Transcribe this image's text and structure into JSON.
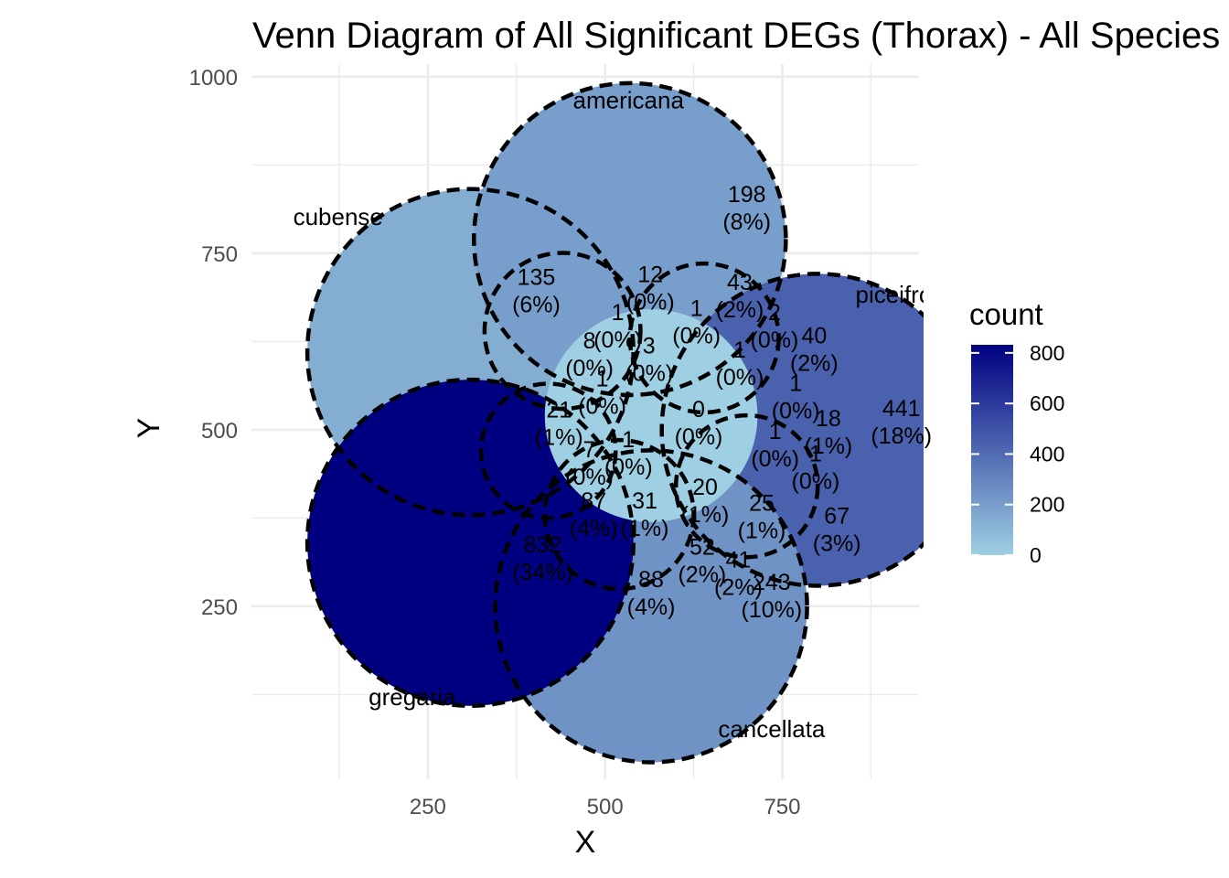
{
  "chart_data": {
    "type": "venn",
    "title": "Venn Diagram of All Significant DEGs (Thorax) - All Species",
    "xlabel": "X",
    "ylabel": "Y",
    "xlim": [
      100,
      1000
    ],
    "ylim": [
      0,
      1000
    ],
    "x_ticks": [
      250,
      500,
      750
    ],
    "y_ticks": [
      250,
      500,
      750,
      1000
    ],
    "grid": true,
    "sets": [
      {
        "name": "cubense",
        "label_x": 60,
        "label_y": 790
      },
      {
        "name": "americana",
        "label_x": 533,
        "label_y": 955
      },
      {
        "name": "piceifrons",
        "label_x": 925,
        "label_y": 680
      },
      {
        "name": "cancellata",
        "label_x": 735,
        "label_y": 65
      },
      {
        "name": "gregaria",
        "label_x": 228,
        "label_y": 110
      }
    ],
    "set_circles": [
      {
        "set": "cubense",
        "cx": 310,
        "cy": 610,
        "r": 230,
        "count": 135
      },
      {
        "set": "americana",
        "cx": 535,
        "cy": 770,
        "r": 220,
        "count": 198
      },
      {
        "set": "piceifrons",
        "cx": 800,
        "cy": 500,
        "r": 220,
        "count": 441
      },
      {
        "set": "cancellata",
        "cx": 565,
        "cy": 250,
        "r": 220,
        "count": 243
      },
      {
        "set": "gregaria",
        "cx": 310,
        "cy": 340,
        "r": 230,
        "count": 832
      }
    ],
    "regions": [
      {
        "sets": [
          "cubense"
        ],
        "count": 135,
        "pct": "(6%)",
        "x": 403,
        "y": 700
      },
      {
        "sets": [
          "americana"
        ],
        "count": 198,
        "pct": "(8%)",
        "x": 700,
        "y": 817
      },
      {
        "sets": [
          "piceifrons"
        ],
        "count": 441,
        "pct": "(18%)",
        "x": 918,
        "y": 514
      },
      {
        "sets": [
          "cancellata"
        ],
        "count": 243,
        "pct": "(10%)",
        "x": 735,
        "y": 268
      },
      {
        "sets": [
          "gregaria"
        ],
        "count": 832,
        "pct": "(34%)",
        "x": 412,
        "y": 321
      },
      {
        "sets": [
          "cubense",
          "americana"
        ],
        "count": 12,
        "pct": "(0%)",
        "x": 564,
        "y": 704
      },
      {
        "sets": [
          "americana",
          "piceifrons"
        ],
        "count": 43,
        "pct": "(2%)",
        "x": 690,
        "y": 693
      },
      {
        "sets": [
          "piceifrons",
          "americana",
          "x"
        ],
        "count": 40,
        "pct": "(2%)",
        "x": 795,
        "y": 617
      },
      {
        "sets": [
          "piceifrons",
          "cancellata"
        ],
        "count": 67,
        "pct": "(3%)",
        "x": 827,
        "y": 362
      },
      {
        "sets": [
          "cancellata",
          "gregaria"
        ],
        "count": 88,
        "pct": "(4%)",
        "x": 565,
        "y": 272
      },
      {
        "sets": [
          "cubense",
          "gregaria"
        ],
        "count": 21,
        "pct": "(1%)",
        "x": 435,
        "y": 512
      },
      {
        "sets": [
          "region-8"
        ],
        "count": 8,
        "pct": "(0%)",
        "x": 478,
        "y": 610
      },
      {
        "sets": [
          "region-1a"
        ],
        "count": 1,
        "pct": "(0%)",
        "x": 518,
        "y": 650
      },
      {
        "sets": [
          "region-1b"
        ],
        "count": 1,
        "pct": "(0%)",
        "x": 629,
        "y": 656
      },
      {
        "sets": [
          "region-2"
        ],
        "count": 2,
        "pct": "(0%)",
        "x": 739,
        "y": 650
      },
      {
        "sets": [
          "region-3"
        ],
        "count": 3,
        "pct": "(0%)",
        "x": 562,
        "y": 603
      },
      {
        "sets": [
          "region-1c"
        ],
        "count": 1,
        "pct": "(0%)",
        "x": 690,
        "y": 597
      },
      {
        "sets": [
          "region-1d"
        ],
        "count": 1,
        "pct": "(0%)",
        "x": 496,
        "y": 556
      },
      {
        "sets": [
          "region-1e"
        ],
        "count": 1,
        "pct": "(0%)",
        "x": 769,
        "y": 550
      },
      {
        "sets": [
          "region-0"
        ],
        "count": 0,
        "pct": "(0%)",
        "x": 632,
        "y": 513
      },
      {
        "sets": [
          "region-18"
        ],
        "count": 18,
        "pct": "(1%)",
        "x": 815,
        "y": 500
      },
      {
        "sets": [
          "region-1f"
        ],
        "count": 1,
        "pct": "(0%)",
        "x": 533,
        "y": 470
      },
      {
        "sets": [
          "region-1g"
        ],
        "count": 1,
        "pct": "(0%)",
        "x": 740,
        "y": 482
      },
      {
        "sets": [
          "region-1h"
        ],
        "count": 1,
        "pct": "(0%)",
        "x": 797,
        "y": 450
      },
      {
        "sets": [
          "region-7"
        ],
        "count": 7,
        "pct": "(0%)",
        "x": 478,
        "y": 456
      },
      {
        "sets": [
          "region-87"
        ],
        "count": 87,
        "pct": "(4%)",
        "x": 484,
        "y": 383
      },
      {
        "sets": [
          "region-31"
        ],
        "count": 31,
        "pct": "(1%)",
        "x": 556,
        "y": 383
      },
      {
        "sets": [
          "region-20"
        ],
        "count": 20,
        "pct": "(1%)",
        "x": 641,
        "y": 403
      },
      {
        "sets": [
          "region-25"
        ],
        "count": 25,
        "pct": "(1%)",
        "x": 721,
        "y": 380
      },
      {
        "sets": [
          "region-52"
        ],
        "count": 52,
        "pct": "(2%)",
        "x": 637,
        "y": 318
      },
      {
        "sets": [
          "region-41"
        ],
        "count": 41,
        "pct": "(2%)",
        "x": 688,
        "y": 300
      }
    ],
    "legend": {
      "title": "count",
      "placement": "right",
      "ticks": [
        0,
        200,
        400,
        600,
        800
      ],
      "range": [
        0,
        832
      ],
      "color_low": "#9ecfe2",
      "color_high": "#000080"
    },
    "colors": {
      "low": "#9ecfe2",
      "high": "#000080",
      "grid": "#ebebeb",
      "outline": "#000000"
    }
  }
}
